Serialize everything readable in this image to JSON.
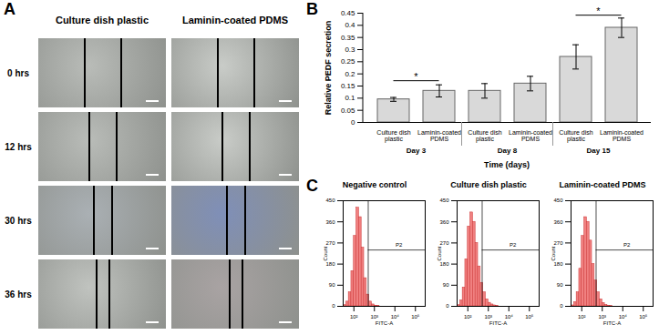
{
  "panel_labels": [
    "A",
    "B",
    "C"
  ],
  "panel_A": {
    "columns": [
      "Culture dish plastic",
      "Laminin-coated PDMS"
    ],
    "rows": [
      "0 hrs",
      "12 hrs",
      "30 hrs",
      "36 hrs"
    ]
  },
  "chart_data": [
    {
      "type": "bar",
      "ylabel": "Relative PEDF secretion",
      "xlabel": "Time (days)",
      "categories": [
        "Culture dish plastic",
        "Laminin-coated PDMS",
        "Culture dish plastic",
        "Laminin-coated PDMS",
        "Culture dish plastic",
        "Laminin-coated PDMS"
      ],
      "groups": [
        "Day 3",
        "Day 8",
        "Day 15"
      ],
      "values": [
        0.095,
        0.13,
        0.13,
        0.16,
        0.27,
        0.39
      ],
      "errors": [
        0.008,
        0.025,
        0.03,
        0.03,
        0.05,
        0.04
      ],
      "color": "#d9d9d9",
      "ylim": [
        0,
        0.45
      ],
      "yticks": [
        0,
        0.05,
        0.1,
        0.15,
        0.2,
        0.25,
        0.3,
        0.35,
        0.4,
        0.45
      ],
      "annotations": [
        {
          "text": "*",
          "from": 0,
          "to": 1,
          "y": 0.17
        },
        {
          "text": "*",
          "from": 4,
          "to": 5,
          "y": 0.44
        }
      ]
    },
    {
      "type": "histogram",
      "title": "Negative control",
      "xlabel": "FITC-A",
      "ylabel": "Count",
      "bins": [
        31.6,
        42.2,
        56.2,
        75,
        100,
        133,
        178,
        237,
        316,
        422,
        562,
        750,
        1000,
        1334,
        1778,
        2371,
        3162
      ],
      "counts": [
        5,
        20,
        60,
        150,
        300,
        420,
        380,
        250,
        120,
        50,
        20,
        8,
        3,
        1,
        0,
        0
      ],
      "color": "#f08080",
      "log": "x",
      "xlim": [
        30,
        300000
      ],
      "xticks": [
        {
          "value": 100,
          "label": "10²"
        },
        {
          "value": 1000,
          "label": "10³"
        },
        {
          "value": 10000,
          "label": "10⁴"
        },
        {
          "value": 100000,
          "label": "10⁵"
        }
      ],
      "ylim": [
        0,
        450
      ],
      "yticks": [
        0,
        90,
        180,
        270,
        360,
        450
      ],
      "annotations": [
        {
          "text": "P2",
          "x1": 500,
          "x2": 300000,
          "y": 240
        }
      ]
    },
    {
      "type": "histogram",
      "title": "Culture dish plastic",
      "xlabel": "FITC-A",
      "ylabel": "Count",
      "bins": [
        31.6,
        42.2,
        56.2,
        75,
        100,
        133,
        178,
        237,
        316,
        422,
        562,
        750,
        1000,
        1334,
        1778,
        2371,
        3162
      ],
      "counts": [
        5,
        25,
        80,
        200,
        340,
        400,
        360,
        270,
        170,
        100,
        60,
        30,
        15,
        8,
        4,
        2
      ],
      "color": "#f08080",
      "log": "x",
      "xlim": [
        30,
        300000
      ],
      "xticks": [
        {
          "value": 100,
          "label": "10²"
        },
        {
          "value": 1000,
          "label": "10³"
        },
        {
          "value": 10000,
          "label": "10⁴"
        },
        {
          "value": 100000,
          "label": "10⁵"
        }
      ],
      "ylim": [
        0,
        450
      ],
      "yticks": [
        0,
        90,
        180,
        270,
        360,
        450
      ],
      "annotations": [
        {
          "text": "P2",
          "x1": 500,
          "x2": 300000,
          "y": 240
        }
      ]
    },
    {
      "type": "histogram",
      "title": "Laminin-coated PDMS",
      "xlabel": "FITC-A",
      "ylabel": "Count",
      "bins": [
        31.6,
        42.2,
        56.2,
        75,
        100,
        133,
        178,
        237,
        316,
        422,
        562,
        750,
        1000,
        1334,
        1778,
        2371,
        3162
      ],
      "counts": [
        4,
        18,
        60,
        160,
        300,
        380,
        360,
        280,
        180,
        110,
        60,
        30,
        14,
        6,
        3,
        1
      ],
      "color": "#f08080",
      "log": "x",
      "xlim": [
        30,
        300000
      ],
      "xticks": [
        {
          "value": 100,
          "label": "10²"
        },
        {
          "value": 1000,
          "label": "10³"
        },
        {
          "value": 10000,
          "label": "10⁴"
        },
        {
          "value": 100000,
          "label": "10⁵"
        }
      ],
      "ylim": [
        0,
        450
      ],
      "yticks": [
        0,
        90,
        180,
        270,
        360,
        450
      ],
      "annotations": [
        {
          "text": "P2",
          "x1": 500,
          "x2": 300000,
          "y": 240
        }
      ]
    }
  ]
}
